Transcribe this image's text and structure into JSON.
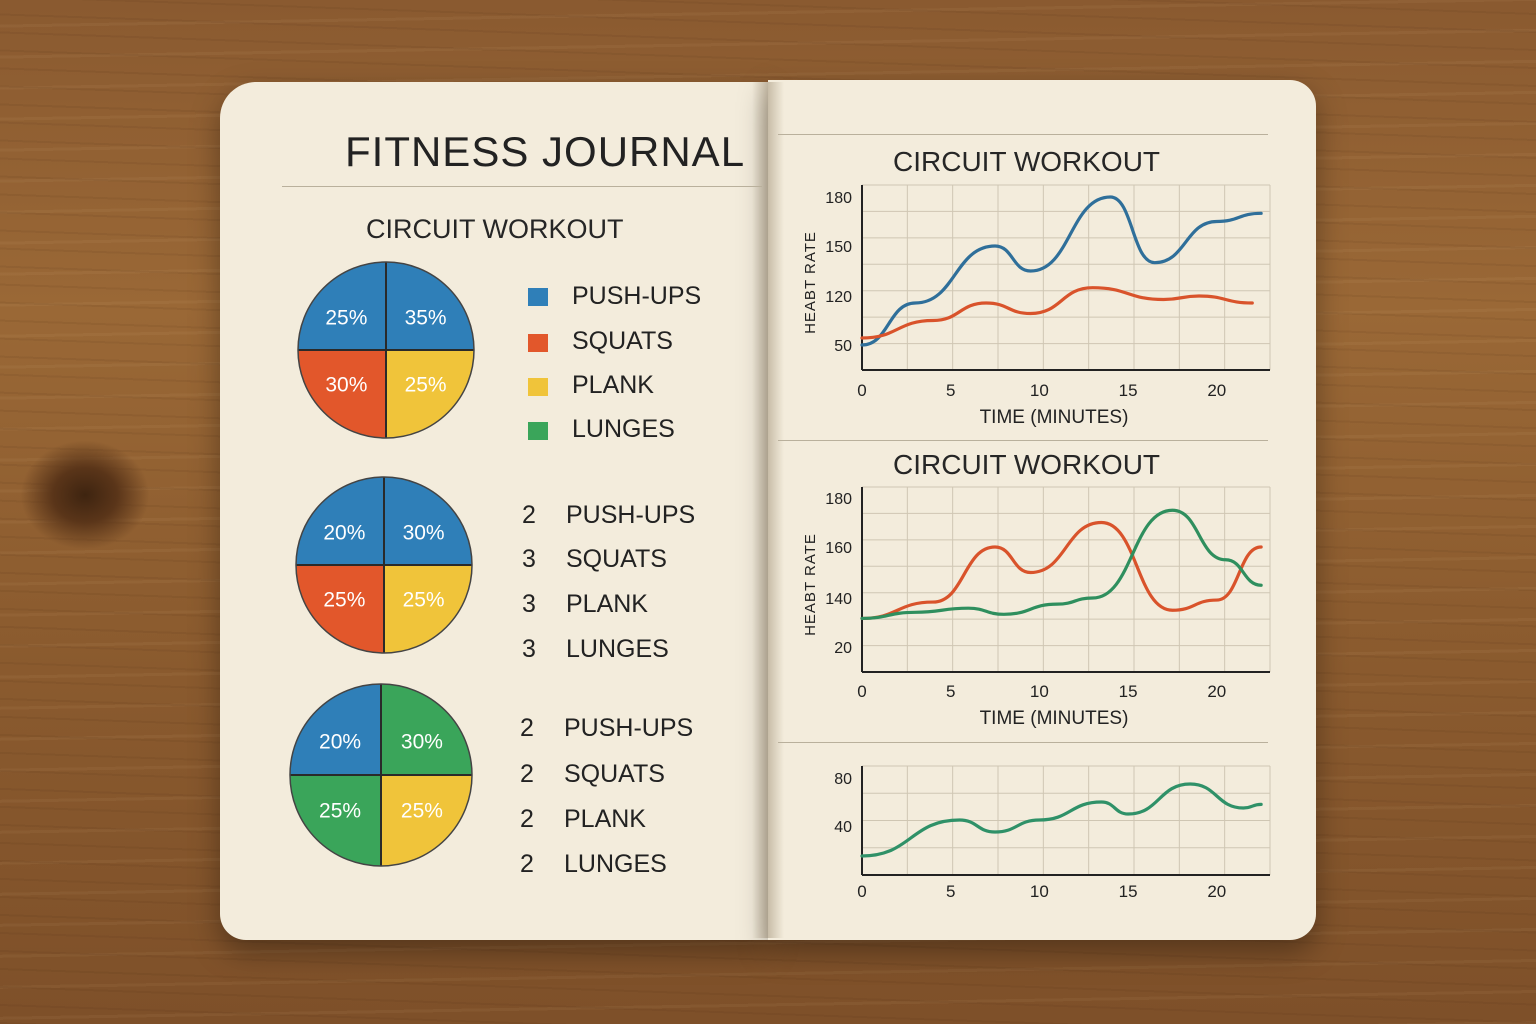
{
  "journal": {
    "title": "FITNESS JOURNAL",
    "left_heading": "CIRCUIT WORKOUT"
  },
  "pies": [
    {
      "slices": [
        {
          "label": "25%",
          "value": 25,
          "color": "#2f7fb8"
        },
        {
          "label": "35%",
          "value": 35,
          "color": "#2f7fb8"
        },
        {
          "label": "25%",
          "value": 25,
          "color": "#f0c43a"
        },
        {
          "label": "30%",
          "value": 30,
          "color": "#e2572b"
        }
      ],
      "legend": [
        {
          "swatch": "#2f7fb8",
          "label": "PUSH-UPS"
        },
        {
          "swatch": "#e2572b",
          "label": "SQUATS"
        },
        {
          "swatch": "#f0c43a",
          "label": "PLANK"
        },
        {
          "swatch": "#3aa55a",
          "label": "LUNGES"
        }
      ]
    },
    {
      "slices": [
        {
          "label": "20%",
          "value": 20,
          "color": "#2f7fb8"
        },
        {
          "label": "30%",
          "value": 30,
          "color": "#2f7fb8"
        },
        {
          "label": "25%",
          "value": 25,
          "color": "#f0c43a"
        },
        {
          "label": "25%",
          "value": 25,
          "color": "#e2572b"
        }
      ],
      "legend": [
        {
          "count": "2",
          "label": "PUSH-UPS"
        },
        {
          "count": "3",
          "label": "SQUATS"
        },
        {
          "count": "3",
          "label": "PLANK"
        },
        {
          "count": "3",
          "label": "LUNGES"
        }
      ]
    },
    {
      "slices": [
        {
          "label": "20%",
          "value": 20,
          "color": "#2f7fb8"
        },
        {
          "label": "30%",
          "value": 30,
          "color": "#3aa55a"
        },
        {
          "label": "25%",
          "value": 25,
          "color": "#f0c43a"
        },
        {
          "label": "25%",
          "value": 25,
          "color": "#3aa55a"
        }
      ],
      "legend": [
        {
          "count": "2",
          "label": "PUSH-UPS"
        },
        {
          "count": "2",
          "label": "SQUATS"
        },
        {
          "count": "2",
          "label": "PLANK"
        },
        {
          "count": "2",
          "label": "LUNGES"
        }
      ]
    }
  ],
  "chart_data": [
    {
      "type": "line",
      "title": "CIRCUIT WORKOUT",
      "xlabel": "TIME (MINUTES)",
      "ylabel": "HEABT RATE",
      "xlim": [
        0,
        23
      ],
      "xticks": [
        0,
        5,
        10,
        15,
        20
      ],
      "yticks": [
        {
          "label": "50",
          "value": 50
        },
        {
          "label": "120",
          "value": 120
        },
        {
          "label": "150",
          "value": 150
        },
        {
          "label": "180",
          "value": 180
        }
      ],
      "ylim": [
        30,
        190
      ],
      "grid": true,
      "series": [
        {
          "color": "#2f6f9a",
          "x": [
            0,
            3,
            7.5,
            9.5,
            14,
            16.5,
            20,
            22.5
          ],
          "y": [
            50,
            110,
            150,
            135,
            180,
            140,
            165,
            170
          ]
        },
        {
          "color": "#d9532b",
          "x": [
            0,
            4,
            7,
            9.5,
            13,
            17,
            19,
            22
          ],
          "y": [
            60,
            85,
            110,
            95,
            125,
            115,
            120,
            110
          ]
        }
      ]
    },
    {
      "type": "line",
      "title": "CIRCUIT WORKOUT",
      "xlabel": "TIME (MINUTES)",
      "ylabel": "HEABT RATE",
      "xlim": [
        0,
        23
      ],
      "xticks": [
        0,
        5,
        10,
        15,
        20
      ],
      "yticks": [
        {
          "label": "20",
          "value": 20
        },
        {
          "label": "140",
          "value": 140
        },
        {
          "label": "160",
          "value": 160
        },
        {
          "label": "180",
          "value": 180
        }
      ],
      "ylim": [
        0,
        190
      ],
      "grid": true,
      "series": [
        {
          "color": "#d9532b",
          "x": [
            0,
            4,
            7.5,
            9.5,
            13.5,
            17.5,
            20,
            22.5
          ],
          "y": [
            90,
            130,
            160,
            150,
            170,
            110,
            135,
            160
          ]
        },
        {
          "color": "#2f8f5e",
          "x": [
            0,
            3,
            6,
            8,
            11,
            13,
            17.5,
            20.5,
            22.5
          ],
          "y": [
            90,
            105,
            115,
            100,
            125,
            140,
            175,
            155,
            145
          ]
        }
      ]
    },
    {
      "type": "line",
      "title": "",
      "xlabel": "",
      "ylabel": "",
      "xlim": [
        0,
        23
      ],
      "xticks": [
        0,
        5,
        10,
        15,
        20
      ],
      "yticks": [
        {
          "label": "40",
          "value": 40
        },
        {
          "label": "80",
          "value": 80
        }
      ],
      "ylim": [
        0,
        95
      ],
      "grid": true,
      "series": [
        {
          "color": "#2f9168",
          "x": [
            0,
            5.5,
            7.5,
            10,
            13.5,
            15,
            18.5,
            21.5,
            22.5
          ],
          "y": [
            15,
            45,
            35,
            45,
            60,
            50,
            75,
            55,
            58
          ]
        }
      ]
    }
  ]
}
